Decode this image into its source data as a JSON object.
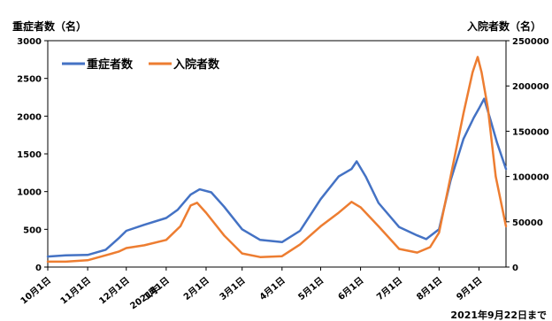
{
  "chart_data": {
    "type": "line",
    "y_left_label": "重症者数（名）",
    "y_right_label": "入院者数（名）",
    "y_left_range": [
      0,
      3000
    ],
    "y_right_range": [
      0,
      250000
    ],
    "y_left_ticks": [
      "0",
      "500",
      "1000",
      "1500",
      "2000",
      "2500",
      "3000"
    ],
    "y_right_ticks": [
      "0",
      "50000",
      "100000",
      "150000",
      "200000",
      "250000"
    ],
    "x_range": [
      "2020-10-01",
      "2021-09-22"
    ],
    "x_ticks": [
      {
        "date": "2020-10-01",
        "label": "10月1日"
      },
      {
        "date": "2020-11-01",
        "label": "11月1日"
      },
      {
        "date": "2020-12-01",
        "label": "12月1日"
      },
      {
        "date": "2021-01-01",
        "label": "1月1日"
      },
      {
        "date": "2021-02-01",
        "label": "2月1日"
      },
      {
        "date": "2021-03-01",
        "label": "3月1日"
      },
      {
        "date": "2021-04-01",
        "label": "4月1日"
      },
      {
        "date": "2021-05-01",
        "label": "5月1日"
      },
      {
        "date": "2021-06-01",
        "label": "6月1日"
      },
      {
        "date": "2021-07-01",
        "label": "7月1日"
      },
      {
        "date": "2021-08-01",
        "label": "8月1日"
      },
      {
        "date": "2021-09-01",
        "label": "9月1日"
      }
    ],
    "year_label": "2021年",
    "footnote": "2021年9月22日まで",
    "legend_position": "top-left",
    "grid": false,
    "series": [
      {
        "name": "重症者数",
        "axis": "left",
        "color": "#4472C4",
        "points": [
          [
            "2020-10-01",
            140
          ],
          [
            "2020-10-15",
            155
          ],
          [
            "2020-11-01",
            160
          ],
          [
            "2020-11-15",
            230
          ],
          [
            "2020-11-25",
            380
          ],
          [
            "2020-12-01",
            480
          ],
          [
            "2020-12-15",
            560
          ],
          [
            "2021-01-01",
            650
          ],
          [
            "2021-01-10",
            760
          ],
          [
            "2021-01-20",
            960
          ],
          [
            "2021-01-27",
            1030
          ],
          [
            "2021-02-05",
            990
          ],
          [
            "2021-02-15",
            800
          ],
          [
            "2021-03-01",
            500
          ],
          [
            "2021-03-15",
            360
          ],
          [
            "2021-04-01",
            330
          ],
          [
            "2021-04-15",
            480
          ],
          [
            "2021-05-01",
            900
          ],
          [
            "2021-05-15",
            1200
          ],
          [
            "2021-05-25",
            1300
          ],
          [
            "2021-05-29",
            1400
          ],
          [
            "2021-06-05",
            1200
          ],
          [
            "2021-06-15",
            850
          ],
          [
            "2021-07-01",
            530
          ],
          [
            "2021-07-15",
            420
          ],
          [
            "2021-07-22",
            370
          ],
          [
            "2021-08-01",
            500
          ],
          [
            "2021-08-10",
            1150
          ],
          [
            "2021-08-20",
            1700
          ],
          [
            "2021-08-28",
            1980
          ],
          [
            "2021-09-01",
            2100
          ],
          [
            "2021-09-05",
            2230
          ],
          [
            "2021-09-10",
            1950
          ],
          [
            "2021-09-15",
            1650
          ],
          [
            "2021-09-22",
            1300
          ]
        ]
      },
      {
        "name": "入院者数",
        "axis": "right",
        "color": "#ED7D31",
        "points": [
          [
            "2020-10-01",
            6000
          ],
          [
            "2020-10-15",
            6000
          ],
          [
            "2020-11-01",
            7500
          ],
          [
            "2020-11-15",
            13000
          ],
          [
            "2020-11-25",
            17000
          ],
          [
            "2020-12-01",
            21000
          ],
          [
            "2020-12-15",
            24000
          ],
          [
            "2021-01-01",
            30000
          ],
          [
            "2021-01-12",
            45000
          ],
          [
            "2021-01-20",
            68000
          ],
          [
            "2021-01-25",
            71000
          ],
          [
            "2021-02-01",
            60000
          ],
          [
            "2021-02-15",
            35000
          ],
          [
            "2021-03-01",
            15000
          ],
          [
            "2021-03-15",
            11000
          ],
          [
            "2021-04-01",
            12000
          ],
          [
            "2021-04-15",
            25000
          ],
          [
            "2021-05-01",
            45000
          ],
          [
            "2021-05-15",
            60000
          ],
          [
            "2021-05-25",
            72000
          ],
          [
            "2021-06-01",
            66000
          ],
          [
            "2021-06-15",
            45000
          ],
          [
            "2021-07-01",
            20000
          ],
          [
            "2021-07-15",
            16000
          ],
          [
            "2021-07-25",
            22000
          ],
          [
            "2021-08-01",
            38000
          ],
          [
            "2021-08-10",
            100000
          ],
          [
            "2021-08-20",
            170000
          ],
          [
            "2021-08-27",
            215000
          ],
          [
            "2021-08-31",
            232000
          ],
          [
            "2021-09-03",
            215000
          ],
          [
            "2021-09-08",
            175000
          ],
          [
            "2021-09-14",
            100000
          ],
          [
            "2021-09-22",
            45000
          ]
        ]
      }
    ]
  }
}
